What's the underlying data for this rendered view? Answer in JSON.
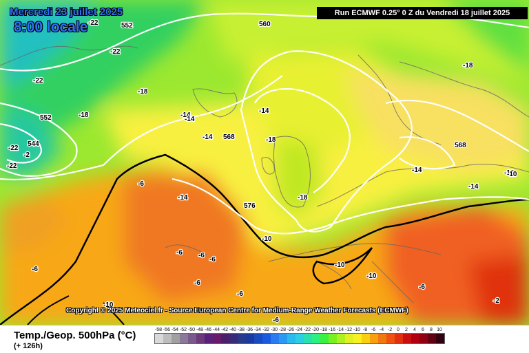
{
  "map": {
    "date_line": "Mercredi 23 juillet 2025",
    "time_line": "8:00 locale",
    "run_info": "Run ECMWF 0.25° 0 Z du Vendredi 18 juillet 2025",
    "copyright": "Copyright © 2025 Meteociel.fr - Source European Centre for Medium-Range Weather Forecasts (ECMWF)",
    "temp_labels": [
      "-22",
      "-22",
      "-22",
      "-18",
      "-18",
      "-22",
      "-2",
      "-22",
      "-18",
      "-14",
      "-14",
      "-14",
      "-14",
      "-18",
      "-18",
      "-14",
      "-10",
      "-6",
      "-6",
      "-6",
      "-6",
      "-6",
      "-6",
      "-6",
      "-10",
      "-10",
      "-10",
      "-6",
      "-2",
      "-10",
      "-14",
      "-14",
      "-10",
      "-6"
    ],
    "geop_labels": [
      "552",
      "560",
      "552",
      "544",
      "568",
      "576",
      "568"
    ]
  },
  "footer": {
    "title": "Temp./Geop. 500hPa (°C)",
    "subtitle": "(+ 126h)"
  },
  "legend": {
    "labels": [
      "-58",
      "-56",
      "-54",
      "-52",
      "-50",
      "-48",
      "-46",
      "-44",
      "-42",
      "-40",
      "-38",
      "-36",
      "-34",
      "-32",
      "-30",
      "-28",
      "-26",
      "-24",
      "-22",
      "-20",
      "-18",
      "-16",
      "-14",
      "-12",
      "-10",
      "-8",
      "-6",
      "-4",
      "-2",
      "0",
      "2",
      "4",
      "6",
      "8",
      "10"
    ],
    "colors": [
      "#d9d9d9",
      "#bdbdbd",
      "#a0a0a0",
      "#8a7a9a",
      "#7a5a8a",
      "#6a3a7a",
      "#5a207a",
      "#6a1a6a",
      "#4a206a",
      "#3a2a7a",
      "#2a3a8a",
      "#1a3aa0",
      "#1a4ac0",
      "#1a5ae0",
      "#2a7af0",
      "#2a9af0",
      "#2abaf0",
      "#2ad0e0",
      "#2ae0b0",
      "#2af080",
      "#3af040",
      "#7af020",
      "#b0f020",
      "#e0f020",
      "#f8f020",
      "#f8d010",
      "#f8a010",
      "#f07810",
      "#f05010",
      "#e03010",
      "#c81010",
      "#b00010",
      "#900010",
      "#600010",
      "#300010"
    ]
  }
}
